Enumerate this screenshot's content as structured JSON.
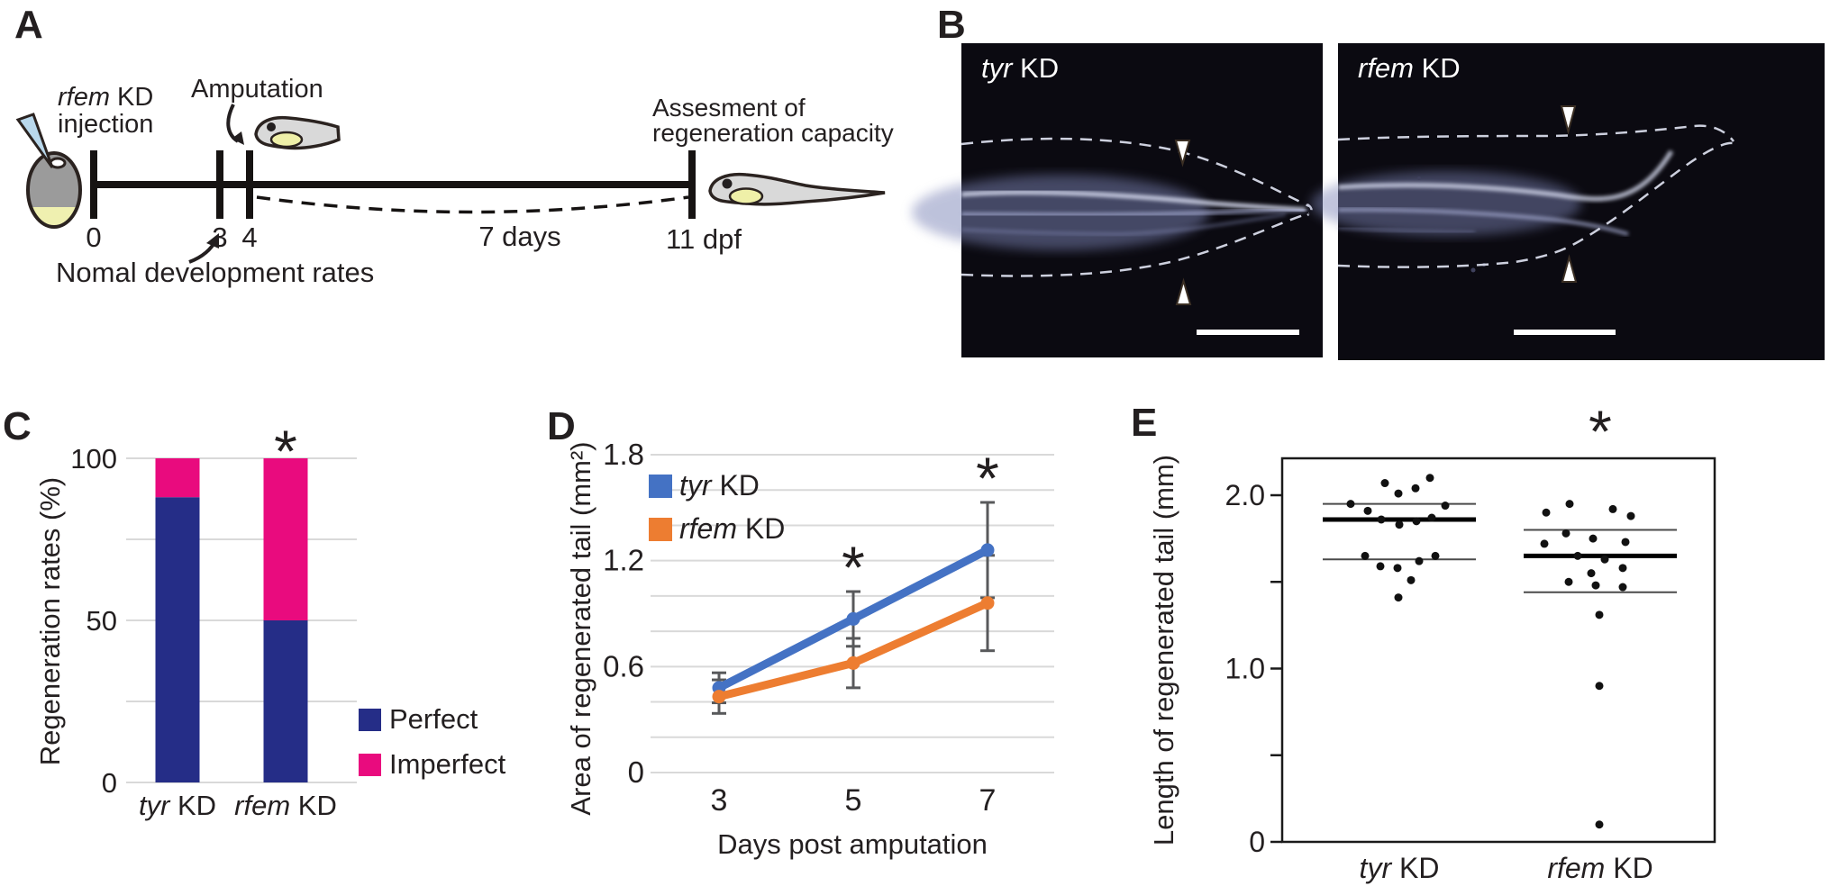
{
  "figure": {
    "panel_a": {
      "label": "A",
      "injection_gene": "rfem",
      "injection_suffix": " KD",
      "injection_line2": "injection",
      "amputation_label": "Amputation",
      "assessment_line1": "Assesment of",
      "assessment_line2": "regeneration capacity",
      "timeline_ticks": [
        "0",
        "3",
        "4"
      ],
      "final_tick_label": "11 dpf",
      "duration_label": "7 days",
      "development_note": "Nomal development rates"
    },
    "panel_b": {
      "label": "B",
      "images": [
        {
          "title_gene": "tyr",
          "title_suffix": " KD"
        },
        {
          "title_gene": "rfem",
          "title_suffix": " KD"
        }
      ]
    },
    "panel_c": {
      "label": "C"
    },
    "panel_d": {
      "label": "D"
    },
    "panel_e": {
      "label": "E"
    }
  },
  "chart_data": [
    {
      "panel": "C",
      "type": "bar",
      "stacked": true,
      "ylabel": "Regeneration rates (%)",
      "categories": [
        {
          "gene": "tyr",
          "suffix": " KD"
        },
        {
          "gene": "rfem",
          "suffix": " KD"
        }
      ],
      "series": [
        {
          "name": "Perfect",
          "color": "#252d87",
          "values": [
            88,
            50
          ]
        },
        {
          "name": "Imperfect",
          "color": "#e90b7e",
          "values": [
            12,
            50
          ]
        }
      ],
      "ylim": [
        0,
        100
      ],
      "yticks": [
        {
          "v": 100,
          "label": "100"
        },
        {
          "v": 50,
          "label": "50"
        },
        {
          "v": 0,
          "label": "0"
        }
      ],
      "gridlines": [
        0,
        25,
        50,
        75,
        100
      ],
      "legend": [
        {
          "name": "Perfect",
          "color": "#252d87"
        },
        {
          "name": "Imperfect",
          "color": "#e90b7e"
        }
      ],
      "significance": [
        {
          "category_index": 1,
          "symbol": "*"
        }
      ]
    },
    {
      "panel": "D",
      "type": "line",
      "xlabel": "Days post amputation",
      "ylabel": "Area of regenerated tail (mm²)",
      "x": [
        "3",
        "5",
        "7"
      ],
      "series": [
        {
          "gene": "tyr",
          "suffix": " KD",
          "color": "#4472c4",
          "values": [
            0.48,
            0.87,
            1.26
          ],
          "errors": [
            0.085,
            0.155,
            0.27
          ]
        },
        {
          "gene": "rfem",
          "suffix": " KD",
          "color": "#ed7d31",
          "values": [
            0.43,
            0.62,
            0.96
          ],
          "errors": [
            0.095,
            0.14,
            0.27
          ]
        }
      ],
      "ylim": [
        0,
        1.8
      ],
      "grid_step": 0.2,
      "yticks": [
        {
          "v": 1.8,
          "label": "1.8"
        },
        {
          "v": 1.2,
          "label": "1.2"
        },
        {
          "v": 0.6,
          "label": "0.6"
        },
        {
          "v": 0,
          "label": "0"
        }
      ],
      "legend_position": "top-left-inside",
      "significance": [
        {
          "x_index": 1,
          "symbol": "*"
        },
        {
          "x_index": 2,
          "symbol": "*"
        }
      ]
    },
    {
      "panel": "E",
      "type": "scatter",
      "ylabel": "Length of regenerated tail (mm)",
      "ylim": [
        0,
        2.2
      ],
      "yticks": [
        {
          "v": 2.0,
          "label": "2.0"
        },
        {
          "v": 1.0,
          "label": "1.0"
        },
        {
          "v": 0,
          "label": "0"
        }
      ],
      "yticks_minor": [
        1.5,
        0.5
      ],
      "groups": [
        {
          "gene": "tyr",
          "suffix": " KD",
          "mean": 1.86,
          "sd_upper": 1.95,
          "sd_lower": 1.63,
          "points": [
            [
              2.1,
              34
            ],
            [
              2.07,
              -16
            ],
            [
              2.04,
              18
            ],
            [
              2.01,
              -1
            ],
            [
              1.95,
              -54
            ],
            [
              1.94,
              51
            ],
            [
              1.91,
              -35
            ],
            [
              1.87,
              36
            ],
            [
              1.86,
              -20
            ],
            [
              1.85,
              19
            ],
            [
              1.83,
              0
            ],
            [
              1.65,
              -38
            ],
            [
              1.65,
              40
            ],
            [
              1.62,
              22
            ],
            [
              1.59,
              -21
            ],
            [
              1.58,
              -2
            ],
            [
              1.51,
              13
            ],
            [
              1.41,
              -1
            ]
          ]
        },
        {
          "gene": "rfem",
          "suffix": " KD",
          "mean": 1.65,
          "sd_upper": 1.8,
          "sd_lower": 1.44,
          "points": [
            [
              1.95,
              -34
            ],
            [
              1.92,
              14
            ],
            [
              1.9,
              -60
            ],
            [
              1.88,
              34
            ],
            [
              1.78,
              -38
            ],
            [
              1.75,
              -8
            ],
            [
              1.73,
              28
            ],
            [
              1.72,
              -62
            ],
            [
              1.65,
              -25
            ],
            [
              1.63,
              5
            ],
            [
              1.58,
              25
            ],
            [
              1.55,
              -10
            ],
            [
              1.5,
              -35
            ],
            [
              1.48,
              -5
            ],
            [
              1.47,
              25
            ],
            [
              1.31,
              -1
            ],
            [
              0.9,
              -1
            ],
            [
              0.1,
              -1
            ]
          ]
        }
      ],
      "significance": [
        {
          "group_index": 1,
          "symbol": "*"
        }
      ]
    }
  ],
  "colors": {
    "text": "#231f20",
    "grid": "#d9d9d9",
    "error_bar": "#58595b",
    "navy": "#252d87",
    "magenta": "#e90b7e",
    "blue": "#4472c4",
    "orange": "#ed7d31",
    "image_bg": "#0b0a11",
    "dashed_outline": "#cdd0de"
  }
}
